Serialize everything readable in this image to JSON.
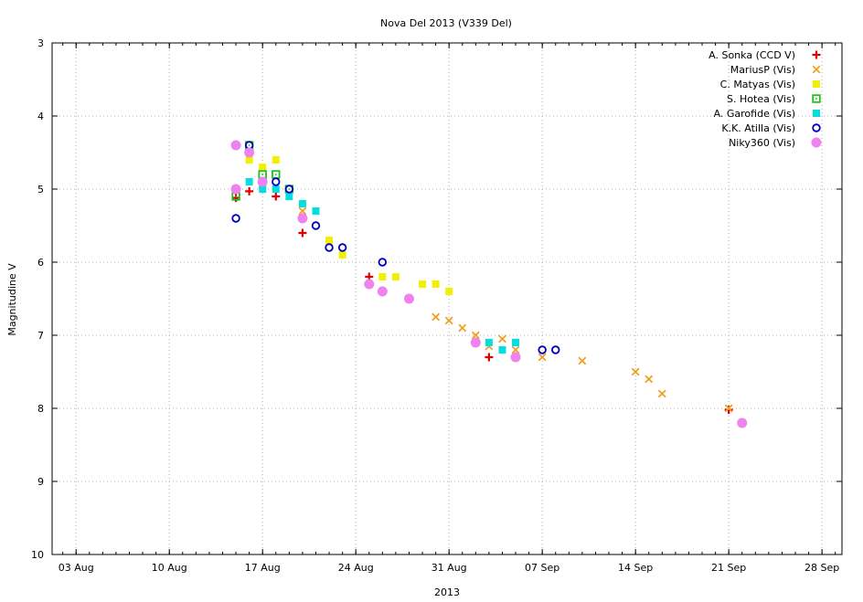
{
  "chart_data": {
    "type": "scatter",
    "title": "Nova Del 2013 (V339 Del)",
    "xlabel": "2013",
    "ylabel": "Magnitudine V",
    "ylim": [
      10,
      3
    ],
    "y_inverted": true,
    "y_ticks": [
      3,
      4,
      5,
      6,
      7,
      8,
      9,
      10
    ],
    "x_ticks": [
      {
        "label": "03 Aug",
        "day": 3
      },
      {
        "label": "10 Aug",
        "day": 10
      },
      {
        "label": "17 Aug",
        "day": 17
      },
      {
        "label": "24 Aug",
        "day": 24
      },
      {
        "label": "31 Aug",
        "day": 31
      },
      {
        "label": "07 Sep",
        "day": 38
      },
      {
        "label": "14 Sep",
        "day": 45
      },
      {
        "label": "21 Sep",
        "day": 52
      },
      {
        "label": "28 Sep",
        "day": 59
      }
    ],
    "xlim_day": [
      1.2,
      60.5
    ],
    "grid": true,
    "legend_position": "top-right",
    "series": [
      {
        "name": "A. Sonka (CCD V)",
        "marker": "plus",
        "color": "#e00000",
        "points": [
          [
            15.0,
            5.12
          ],
          [
            16.0,
            5.03
          ],
          [
            18.0,
            5.1
          ],
          [
            20.0,
            5.6
          ],
          [
            25.0,
            6.2
          ],
          [
            34.0,
            7.3
          ],
          [
            52.0,
            8.02
          ]
        ]
      },
      {
        "name": "MariusP (Vis)",
        "marker": "cross",
        "color": "#f0a020",
        "points": [
          [
            20.0,
            5.3
          ],
          [
            30.0,
            6.75
          ],
          [
            31.0,
            6.8
          ],
          [
            32.0,
            6.9
          ],
          [
            33.0,
            7.0
          ],
          [
            34.0,
            7.15
          ],
          [
            35.0,
            7.05
          ],
          [
            36.0,
            7.2
          ],
          [
            38.0,
            7.3
          ],
          [
            41.0,
            7.35
          ],
          [
            45.0,
            7.5
          ],
          [
            46.0,
            7.6
          ],
          [
            47.0,
            7.8
          ],
          [
            52.0,
            8.0
          ]
        ]
      },
      {
        "name": "C. Matyas (Vis)",
        "marker": "square",
        "color": "#f0f000",
        "points": [
          [
            16.0,
            4.6
          ],
          [
            17.0,
            4.7
          ],
          [
            18.0,
            4.6
          ],
          [
            22.0,
            5.7
          ],
          [
            23.0,
            5.9
          ],
          [
            26.0,
            6.2
          ],
          [
            27.0,
            6.2
          ],
          [
            29.0,
            6.3
          ],
          [
            30.0,
            6.3
          ],
          [
            31.0,
            6.4
          ]
        ]
      },
      {
        "name": "S. Hotea (Vis)",
        "marker": "square-open",
        "color": "#20c020",
        "points": [
          [
            15.0,
            5.1
          ],
          [
            16.0,
            4.4
          ],
          [
            17.0,
            4.8
          ],
          [
            18.0,
            4.8
          ],
          [
            19.0,
            5.0
          ]
        ]
      },
      {
        "name": "A. Garofide (Vis)",
        "marker": "square",
        "color": "#00e0e0",
        "points": [
          [
            16.0,
            4.9
          ],
          [
            17.0,
            5.0
          ],
          [
            18.0,
            5.0
          ],
          [
            19.0,
            5.1
          ],
          [
            20.0,
            5.2
          ],
          [
            21.0,
            5.3
          ],
          [
            34.0,
            7.1
          ],
          [
            35.0,
            7.2
          ],
          [
            36.0,
            7.1
          ]
        ]
      },
      {
        "name": "K.K. Atilla (Vis)",
        "marker": "circle-open",
        "color": "#0000c0",
        "points": [
          [
            15.0,
            5.4
          ],
          [
            16.0,
            4.4
          ],
          [
            18.0,
            4.9
          ],
          [
            19.0,
            5.0
          ],
          [
            21.0,
            5.5
          ],
          [
            22.0,
            5.8
          ],
          [
            23.0,
            5.8
          ],
          [
            26.0,
            6.0
          ],
          [
            38.0,
            7.2
          ],
          [
            39.0,
            7.2
          ]
        ]
      },
      {
        "name": "Niky360 (Vis)",
        "marker": "circle",
        "color": "#ee82ee",
        "points": [
          [
            15.0,
            4.4
          ],
          [
            15.0,
            5.0
          ],
          [
            16.0,
            4.5
          ],
          [
            17.0,
            4.9
          ],
          [
            20.0,
            5.4
          ],
          [
            25.0,
            6.3
          ],
          [
            26.0,
            6.4
          ],
          [
            28.0,
            6.5
          ],
          [
            33.0,
            7.1
          ],
          [
            36.0,
            7.3
          ],
          [
            53.0,
            8.2
          ]
        ]
      }
    ]
  }
}
